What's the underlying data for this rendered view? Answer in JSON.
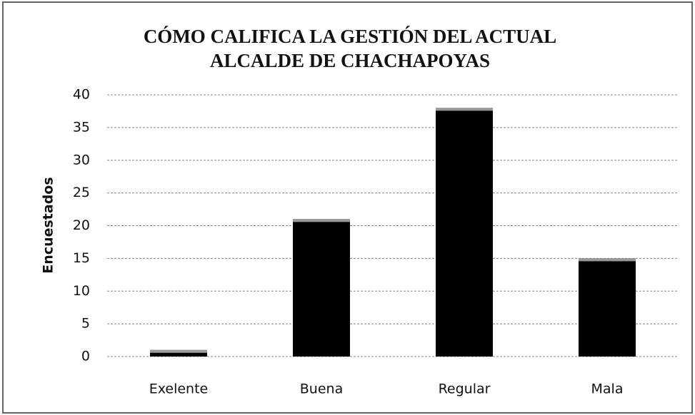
{
  "chart_data": {
    "type": "bar",
    "title": "CÓMO CALIFICA LA GESTIÓN DEL ACTUAL ALCALDE DE CHACHAPOYAS",
    "y_label": "Encuestados",
    "categories": [
      "Exelente",
      "Buena",
      "Regular",
      "Mala"
    ],
    "values": [
      1,
      21,
      38,
      15
    ],
    "color": "#000000",
    "ylim": [
      0,
      40
    ],
    "yticks": [
      0,
      5,
      10,
      15,
      20,
      25,
      30,
      35,
      40
    ],
    "grid": true
  }
}
